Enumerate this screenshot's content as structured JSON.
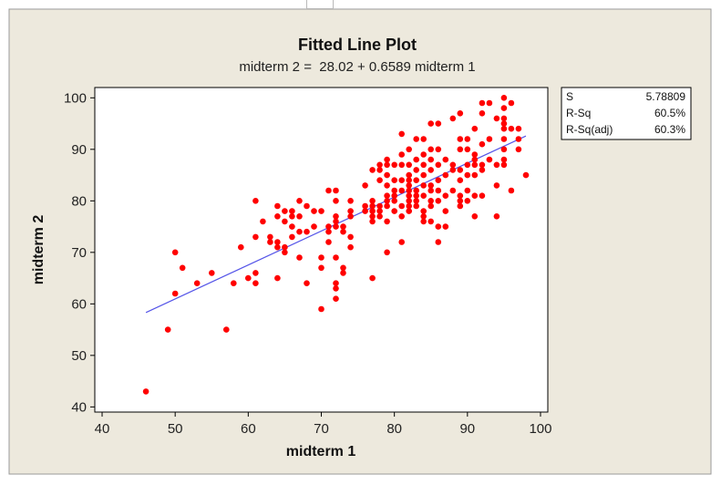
{
  "chart_data": {
    "type": "scatter",
    "title": "Fitted Line Plot",
    "subtitle": "midterm 2 =  28.02 + 0.6589 midterm 1",
    "xlabel": "midterm 1",
    "ylabel": "midterm 2",
    "xlim": [
      39,
      101
    ],
    "ylim": [
      39,
      102
    ],
    "xticks": [
      "40",
      "50",
      "60",
      "70",
      "80",
      "90",
      "100"
    ],
    "yticks": [
      "40",
      "50",
      "60",
      "70",
      "80",
      "90",
      "100"
    ],
    "fit": {
      "intercept": 28.02,
      "slope": 0.6589,
      "x_range": [
        46,
        98
      ]
    },
    "stats": [
      {
        "label": "S",
        "value": "5.78809"
      },
      {
        "label": "R-Sq",
        "value": "60.5%"
      },
      {
        "label": "R-Sq(adj)",
        "value": "60.3%"
      }
    ],
    "colors": {
      "points": "#ff0000",
      "fit_line": "#5555e8",
      "background": "#ede9dd"
    },
    "points": [
      [
        46,
        43
      ],
      [
        49,
        55
      ],
      [
        50,
        62
      ],
      [
        50,
        70
      ],
      [
        51,
        67
      ],
      [
        53,
        64
      ],
      [
        55,
        66
      ],
      [
        57,
        55
      ],
      [
        58,
        64
      ],
      [
        59,
        71
      ],
      [
        60,
        65
      ],
      [
        61,
        64
      ],
      [
        61,
        66
      ],
      [
        61,
        73
      ],
      [
        61,
        80
      ],
      [
        62,
        76
      ],
      [
        63,
        72
      ],
      [
        63,
        73
      ],
      [
        64,
        65
      ],
      [
        64,
        71
      ],
      [
        64,
        72
      ],
      [
        64,
        77
      ],
      [
        64,
        79
      ],
      [
        65,
        70
      ],
      [
        65,
        71
      ],
      [
        65,
        76
      ],
      [
        65,
        78
      ],
      [
        66,
        73
      ],
      [
        66,
        75
      ],
      [
        66,
        77
      ],
      [
        66,
        78
      ],
      [
        67,
        69
      ],
      [
        67,
        74
      ],
      [
        67,
        77
      ],
      [
        67,
        80
      ],
      [
        68,
        64
      ],
      [
        68,
        74
      ],
      [
        68,
        79
      ],
      [
        69,
        75
      ],
      [
        69,
        78
      ],
      [
        70,
        59
      ],
      [
        70,
        67
      ],
      [
        70,
        69
      ],
      [
        70,
        78
      ],
      [
        71,
        72
      ],
      [
        71,
        74
      ],
      [
        71,
        75
      ],
      [
        71,
        82
      ],
      [
        72,
        61
      ],
      [
        72,
        63
      ],
      [
        72,
        64
      ],
      [
        72,
        69
      ],
      [
        72,
        75
      ],
      [
        72,
        76
      ],
      [
        72,
        77
      ],
      [
        72,
        80
      ],
      [
        72,
        82
      ],
      [
        73,
        66
      ],
      [
        73,
        67
      ],
      [
        73,
        74
      ],
      [
        73,
        75
      ],
      [
        74,
        71
      ],
      [
        74,
        73
      ],
      [
        74,
        77
      ],
      [
        74,
        78
      ],
      [
        74,
        80
      ],
      [
        76,
        78
      ],
      [
        76,
        79
      ],
      [
        76,
        83
      ],
      [
        77,
        65
      ],
      [
        77,
        76
      ],
      [
        77,
        77
      ],
      [
        77,
        78
      ],
      [
        77,
        79
      ],
      [
        77,
        80
      ],
      [
        77,
        86
      ],
      [
        78,
        77
      ],
      [
        78,
        78
      ],
      [
        78,
        79
      ],
      [
        78,
        84
      ],
      [
        78,
        86
      ],
      [
        78,
        87
      ],
      [
        79,
        70
      ],
      [
        79,
        76
      ],
      [
        79,
        79
      ],
      [
        79,
        80
      ],
      [
        79,
        81
      ],
      [
        79,
        83
      ],
      [
        79,
        85
      ],
      [
        79,
        87
      ],
      [
        79,
        88
      ],
      [
        80,
        78
      ],
      [
        80,
        80
      ],
      [
        80,
        81
      ],
      [
        80,
        82
      ],
      [
        80,
        84
      ],
      [
        80,
        87
      ],
      [
        81,
        72
      ],
      [
        81,
        77
      ],
      [
        81,
        79
      ],
      [
        81,
        82
      ],
      [
        81,
        84
      ],
      [
        81,
        87
      ],
      [
        81,
        89
      ],
      [
        81,
        93
      ],
      [
        82,
        78
      ],
      [
        82,
        79
      ],
      [
        82,
        80
      ],
      [
        82,
        81
      ],
      [
        82,
        82
      ],
      [
        82,
        83
      ],
      [
        82,
        84
      ],
      [
        82,
        85
      ],
      [
        82,
        87
      ],
      [
        82,
        90
      ],
      [
        83,
        79
      ],
      [
        83,
        80
      ],
      [
        83,
        81
      ],
      [
        83,
        82
      ],
      [
        83,
        84
      ],
      [
        83,
        86
      ],
      [
        83,
        88
      ],
      [
        83,
        92
      ],
      [
        84,
        76
      ],
      [
        84,
        77
      ],
      [
        84,
        78
      ],
      [
        84,
        81
      ],
      [
        84,
        83
      ],
      [
        84,
        85
      ],
      [
        84,
        87
      ],
      [
        84,
        89
      ],
      [
        84,
        92
      ],
      [
        85,
        76
      ],
      [
        85,
        79
      ],
      [
        85,
        80
      ],
      [
        85,
        82
      ],
      [
        85,
        83
      ],
      [
        85,
        86
      ],
      [
        85,
        88
      ],
      [
        85,
        90
      ],
      [
        85,
        95
      ],
      [
        86,
        72
      ],
      [
        86,
        75
      ],
      [
        86,
        80
      ],
      [
        86,
        82
      ],
      [
        86,
        84
      ],
      [
        86,
        87
      ],
      [
        86,
        90
      ],
      [
        86,
        95
      ],
      [
        87,
        75
      ],
      [
        87,
        78
      ],
      [
        87,
        81
      ],
      [
        87,
        85
      ],
      [
        87,
        88
      ],
      [
        88,
        82
      ],
      [
        88,
        86
      ],
      [
        88,
        87
      ],
      [
        88,
        96
      ],
      [
        89,
        79
      ],
      [
        89,
        80
      ],
      [
        89,
        81
      ],
      [
        89,
        84
      ],
      [
        89,
        86
      ],
      [
        89,
        90
      ],
      [
        89,
        92
      ],
      [
        89,
        97
      ],
      [
        90,
        80
      ],
      [
        90,
        82
      ],
      [
        90,
        85
      ],
      [
        90,
        87
      ],
      [
        90,
        90
      ],
      [
        90,
        92
      ],
      [
        91,
        77
      ],
      [
        91,
        81
      ],
      [
        91,
        85
      ],
      [
        91,
        87
      ],
      [
        91,
        88
      ],
      [
        91,
        89
      ],
      [
        91,
        94
      ],
      [
        92,
        81
      ],
      [
        92,
        86
      ],
      [
        92,
        87
      ],
      [
        92,
        91
      ],
      [
        92,
        97
      ],
      [
        92,
        99
      ],
      [
        93,
        88
      ],
      [
        93,
        92
      ],
      [
        93,
        99
      ],
      [
        94,
        77
      ],
      [
        94,
        83
      ],
      [
        94,
        87
      ],
      [
        94,
        96
      ],
      [
        95,
        87
      ],
      [
        95,
        88
      ],
      [
        95,
        90
      ],
      [
        95,
        92
      ],
      [
        95,
        94
      ],
      [
        95,
        95
      ],
      [
        95,
        96
      ],
      [
        95,
        98
      ],
      [
        95,
        100
      ],
      [
        96,
        82
      ],
      [
        96,
        94
      ],
      [
        96,
        99
      ],
      [
        97,
        90
      ],
      [
        97,
        92
      ],
      [
        97,
        94
      ],
      [
        98,
        85
      ]
    ]
  }
}
